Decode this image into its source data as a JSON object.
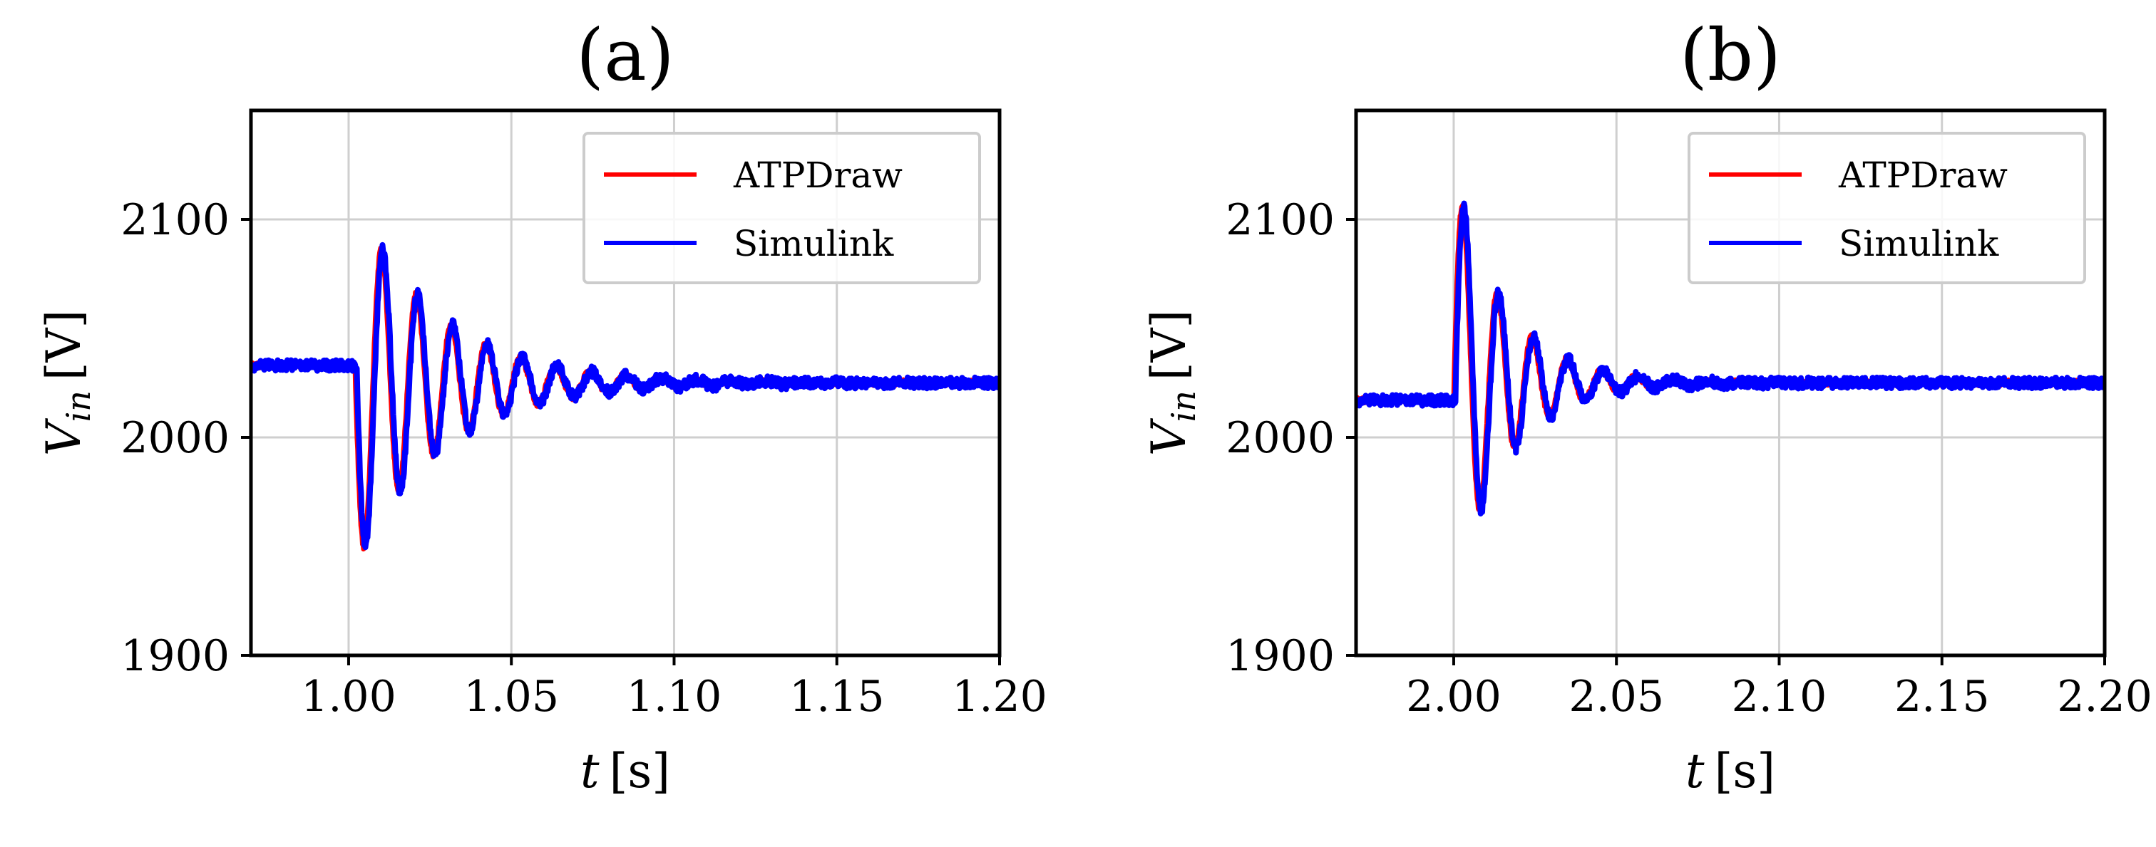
{
  "chart_data": [
    {
      "type": "line",
      "panel_title": "(a)",
      "xlabel_var": "t",
      "xlabel_unit": "[s]",
      "ylabel_var": "V",
      "ylabel_sub": "in",
      "ylabel_unit": "[V]",
      "xlim": [
        0.97,
        1.2
      ],
      "ylim": [
        1900,
        2150
      ],
      "xticks": [
        1.0,
        1.05,
        1.1,
        1.15,
        1.2
      ],
      "xtick_labels": [
        "1.00",
        "1.05",
        "1.10",
        "1.15",
        "1.20"
      ],
      "yticks": [
        1900,
        2000,
        2100
      ],
      "ytick_labels": [
        "1900",
        "2000",
        "2100"
      ],
      "grid": true,
      "legend_position": "top-right",
      "disturbance": {
        "t0": 1.002,
        "v_before": 2033,
        "v_after": 2025,
        "amplitude": 83,
        "period": 0.0107,
        "decay_tau": 0.026
      },
      "series": [
        {
          "name": "ATPDraw",
          "color": "#ff0000",
          "t_shift": 0.0
        },
        {
          "name": "Simulink",
          "color": "#0000ff",
          "t_shift": 0.0006
        }
      ]
    },
    {
      "type": "line",
      "panel_title": "(b)",
      "xlabel_var": "t",
      "xlabel_unit": "[s]",
      "ylabel_var": "V",
      "ylabel_sub": "in",
      "ylabel_unit": "[V]",
      "xlim": [
        1.97,
        2.2
      ],
      "ylim": [
        1900,
        2150
      ],
      "xticks": [
        2.0,
        2.05,
        2.1,
        2.15,
        2.2
      ],
      "xtick_labels": [
        "2.00",
        "2.05",
        "2.10",
        "2.15",
        "2.20"
      ],
      "yticks": [
        1900,
        2000,
        2100
      ],
      "ytick_labels": [
        "1900",
        "2000",
        "2100"
      ],
      "grid": true,
      "legend_position": "top-right",
      "disturbance": {
        "t0": 2.0,
        "v_before": 2017,
        "v_after": 2025,
        "amplitude": -95,
        "period": 0.0107,
        "decay_tau": 0.016
      },
      "series": [
        {
          "name": "ATPDraw",
          "color": "#ff0000",
          "t_shift": 0.0
        },
        {
          "name": "Simulink",
          "color": "#0000ff",
          "t_shift": 0.0006
        }
      ]
    }
  ]
}
